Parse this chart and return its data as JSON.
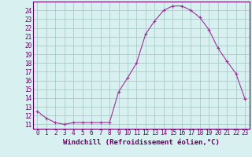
{
  "x": [
    0,
    1,
    2,
    3,
    4,
    5,
    6,
    7,
    8,
    9,
    10,
    11,
    12,
    13,
    14,
    15,
    16,
    17,
    18,
    19,
    20,
    21,
    22,
    23
  ],
  "y": [
    12.5,
    11.7,
    11.2,
    11.0,
    11.2,
    11.2,
    11.2,
    11.2,
    11.2,
    14.7,
    16.3,
    18.0,
    21.3,
    22.8,
    24.0,
    24.5,
    24.5,
    24.0,
    23.2,
    21.8,
    19.7,
    18.2,
    16.8,
    13.9
  ],
  "line_color": "#993399",
  "marker": "+",
  "bg_color": "#d9f0f0",
  "grid_color": "#aacccc",
  "xlabel": "Windchill (Refroidissement éolien,°C)",
  "xlim": [
    -0.5,
    23.5
  ],
  "ylim": [
    10.5,
    25.0
  ],
  "yticks": [
    11,
    12,
    13,
    14,
    15,
    16,
    17,
    18,
    19,
    20,
    21,
    22,
    23,
    24
  ],
  "xticks": [
    0,
    1,
    2,
    3,
    4,
    5,
    6,
    7,
    8,
    9,
    10,
    11,
    12,
    13,
    14,
    15,
    16,
    17,
    18,
    19,
    20,
    21,
    22,
    23
  ],
  "tick_fontsize": 5.5,
  "xlabel_fontsize": 6.5,
  "axis_color": "#660066",
  "spine_color": "#660066"
}
